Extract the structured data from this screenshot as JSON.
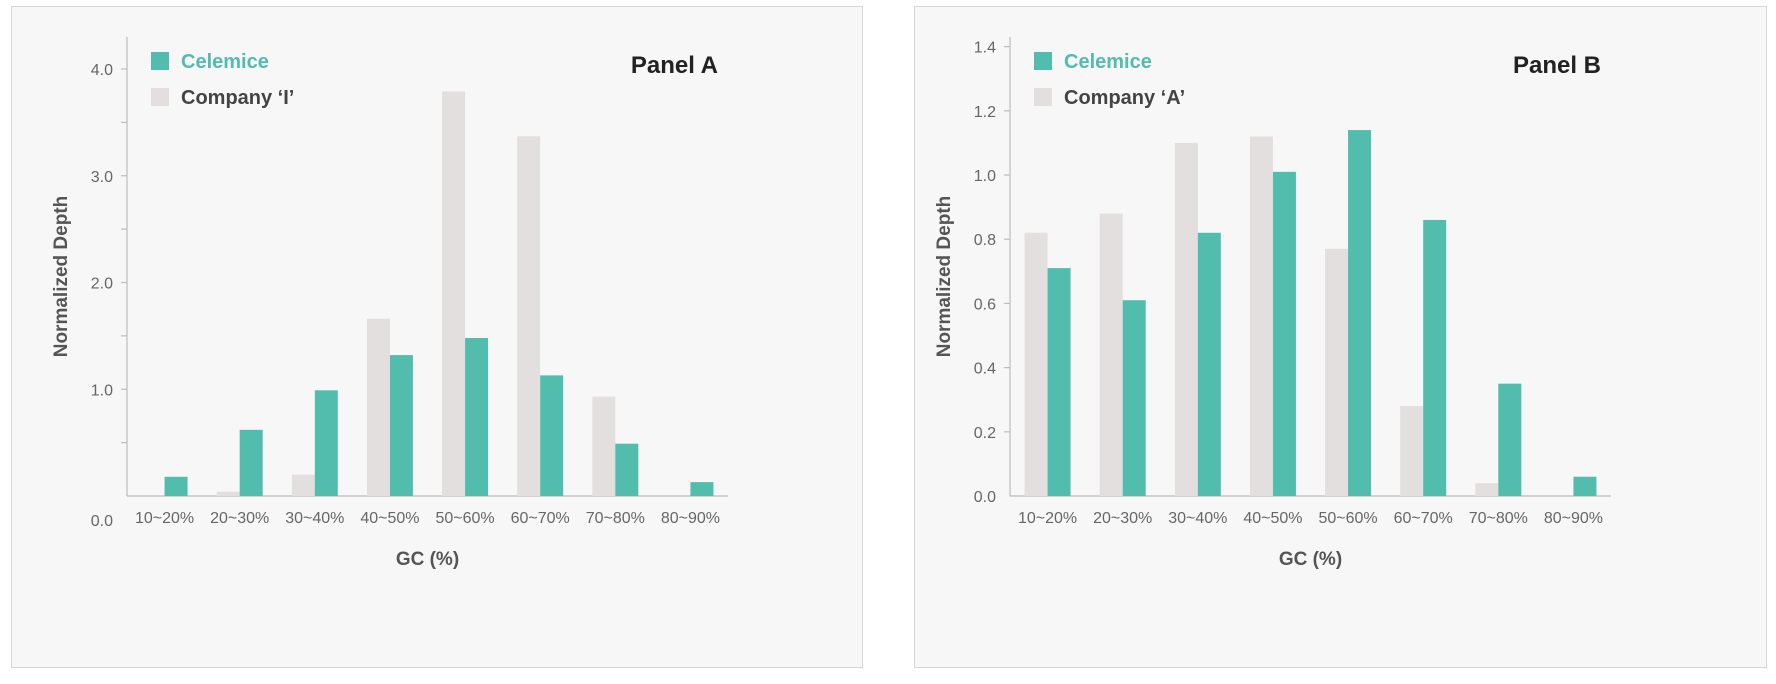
{
  "colors": {
    "celemice": "#52bcad",
    "company": "#e3dfde",
    "axis": "#bdbdbd",
    "label": "#666666"
  },
  "chart_data": [
    {
      "type": "bar",
      "panel_label": "Panel A",
      "xlabel": "GC (%)",
      "ylabel": "Normalized Depth",
      "categories": [
        "10~20%",
        "20~30%",
        "30~40%",
        "40~50%",
        "50~60%",
        "60~70%",
        "70~80%",
        "80~90%"
      ],
      "yticks": [
        0.0,
        1.0,
        2.0,
        3.0,
        4.0
      ],
      "ytick_labels": [
        "0.0",
        "1.0",
        "2.0",
        "3.0",
        "4.0"
      ],
      "ylim": [
        -0.2,
        4.3
      ],
      "legend_position": "top-left",
      "series": [
        {
          "name": "Company ‘I’",
          "color": "#e3dfde",
          "values": [
            0.0,
            0.04,
            0.2,
            1.66,
            3.79,
            3.37,
            0.93,
            0.0
          ]
        },
        {
          "name": "Celemice",
          "color": "#52bcad",
          "values": [
            0.18,
            0.62,
            0.99,
            1.32,
            1.48,
            1.13,
            0.49,
            0.13
          ]
        }
      ]
    },
    {
      "type": "bar",
      "panel_label": "Panel B",
      "xlabel": "GC (%)",
      "ylabel": "Normalized Depth",
      "categories": [
        "10~20%",
        "20~30%",
        "30~40%",
        "40~50%",
        "50~60%",
        "60~70%",
        "70~80%",
        "80~90%"
      ],
      "yticks": [
        0.0,
        0.2,
        0.4,
        0.6,
        0.8,
        1.0,
        1.2,
        1.4
      ],
      "ytick_labels": [
        "0.0",
        "0.2",
        "0.4",
        "0.6",
        "0.8",
        "1.0",
        "1.2",
        "1.4"
      ],
      "ylim": [
        -0.01,
        1.43
      ],
      "legend_position": "top-left",
      "series": [
        {
          "name": "Company ‘A’",
          "color": "#e3dfde",
          "values": [
            0.82,
            0.88,
            1.1,
            1.12,
            0.77,
            0.28,
            0.04,
            0.0
          ]
        },
        {
          "name": "Celemice",
          "color": "#52bcad",
          "values": [
            0.71,
            0.61,
            0.82,
            1.01,
            1.14,
            0.86,
            0.35,
            0.06
          ]
        }
      ]
    }
  ]
}
